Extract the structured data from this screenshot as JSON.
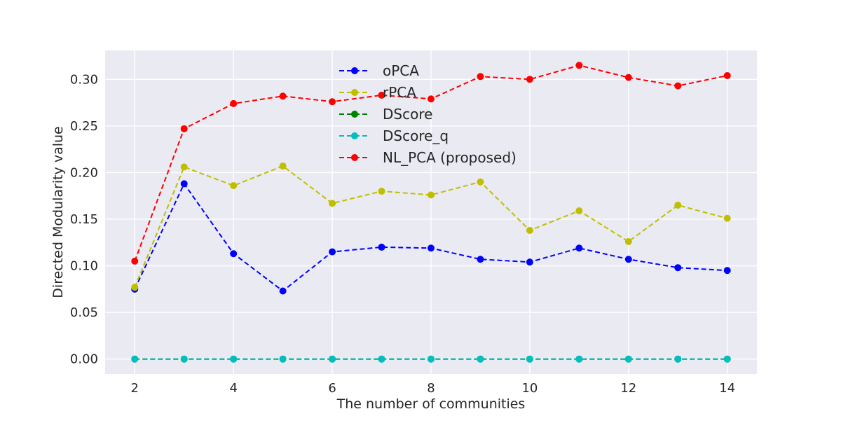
{
  "chart_data": {
    "type": "line",
    "title": "",
    "xlabel": "The number of communities",
    "ylabel": "Directed Modularity value",
    "xlim": [
      1.4,
      14.6
    ],
    "ylim": [
      -0.016,
      0.331
    ],
    "xticks": [
      2,
      4,
      6,
      8,
      10,
      12,
      14
    ],
    "yticks": [
      0.0,
      0.05,
      0.1,
      0.15,
      0.2,
      0.25,
      0.3
    ],
    "ytick_labels": [
      "0.00",
      "0.05",
      "0.10",
      "0.15",
      "0.20",
      "0.25",
      "0.30"
    ],
    "grid": true,
    "legend_position": "upper-center",
    "background": "#eaeaf2",
    "x": [
      2,
      3,
      4,
      5,
      6,
      7,
      8,
      9,
      10,
      11,
      12,
      13,
      14
    ],
    "series": [
      {
        "name": "oPCA",
        "color": "#0000ff",
        "values": [
          0.075,
          0.188,
          0.113,
          0.073,
          0.115,
          0.12,
          0.119,
          0.107,
          0.104,
          0.119,
          0.107,
          0.098,
          0.095
        ]
      },
      {
        "name": "rPCA",
        "color": "#bfbf00",
        "values": [
          0.077,
          0.206,
          0.186,
          0.207,
          0.167,
          0.18,
          0.176,
          0.19,
          0.138,
          0.159,
          0.126,
          0.165,
          0.151
        ]
      },
      {
        "name": "DScore",
        "color": "#008000",
        "values": [
          0.0,
          0.0,
          0.0,
          0.0,
          0.0,
          0.0,
          0.0,
          0.0,
          0.0,
          0.0,
          0.0,
          0.0,
          0.0
        ]
      },
      {
        "name": "DScore_q",
        "color": "#00bfbf",
        "values": [
          0.0,
          0.0,
          0.0,
          0.0,
          0.0,
          0.0,
          0.0,
          0.0,
          0.0,
          0.0,
          0.0,
          0.0,
          0.0
        ]
      },
      {
        "name": "NL_PCA (proposed)",
        "color": "#ff0000",
        "values": [
          0.105,
          0.247,
          0.274,
          0.282,
          0.276,
          0.283,
          0.279,
          0.303,
          0.3,
          0.315,
          0.302,
          0.293,
          0.304
        ]
      }
    ]
  }
}
